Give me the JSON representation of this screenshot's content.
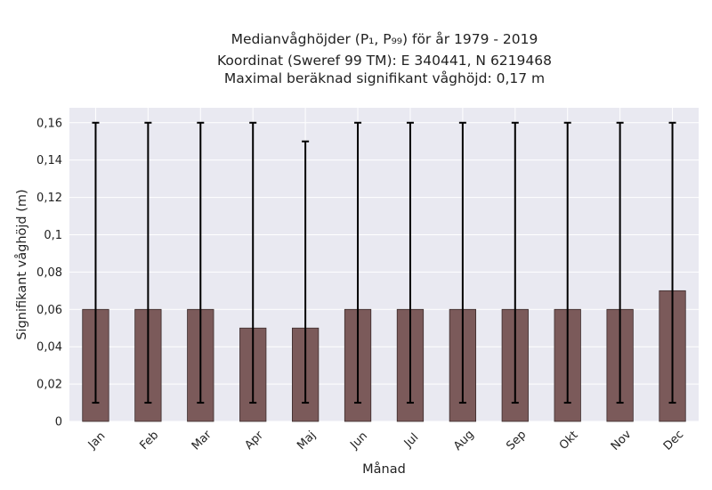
{
  "chart_data": {
    "type": "bar",
    "title_lines": [
      "Medianvåghöjder (P₁, P₉₉) för år 1979 - 2019",
      "Koordinat (Sweref 99 TM): E 340441, N 6219468",
      "Maximal beräknad signifikant våghöjd: 0,17 m"
    ],
    "xlabel": "Månad",
    "ylabel": "Signifikant våghöjd (m)",
    "categories": [
      "Jan",
      "Feb",
      "Mar",
      "Apr",
      "Maj",
      "Jun",
      "Jul",
      "Aug",
      "Sep",
      "Okt",
      "Nov",
      "Dec"
    ],
    "series": [
      {
        "values": [
          0.06,
          0.06,
          0.06,
          0.05,
          0.05,
          0.06,
          0.06,
          0.06,
          0.06,
          0.06,
          0.06,
          0.07
        ],
        "error_low": [
          0.01,
          0.01,
          0.01,
          0.01,
          0.01,
          0.01,
          0.01,
          0.01,
          0.01,
          0.01,
          0.01,
          0.01
        ],
        "error_high": [
          0.16,
          0.16,
          0.16,
          0.16,
          0.15,
          0.16,
          0.16,
          0.16,
          0.16,
          0.16,
          0.16,
          0.16
        ]
      }
    ],
    "ylim": [
      0,
      0.168
    ],
    "yticks": [
      0,
      0.02,
      0.04,
      0.06,
      0.08,
      0.1,
      0.12,
      0.14,
      0.16
    ],
    "ytick_labels": [
      "0",
      "0,02",
      "0,04",
      "0,06",
      "0,08",
      "0,1",
      "0,12",
      "0,14",
      "0,16"
    ],
    "grid": true,
    "colors": {
      "bar": "#7b5a5a",
      "bar_edge": "#3a2a2a",
      "plot_background": "#e9e9f1",
      "grid": "#ffffff",
      "error_bar": "#000000"
    }
  }
}
